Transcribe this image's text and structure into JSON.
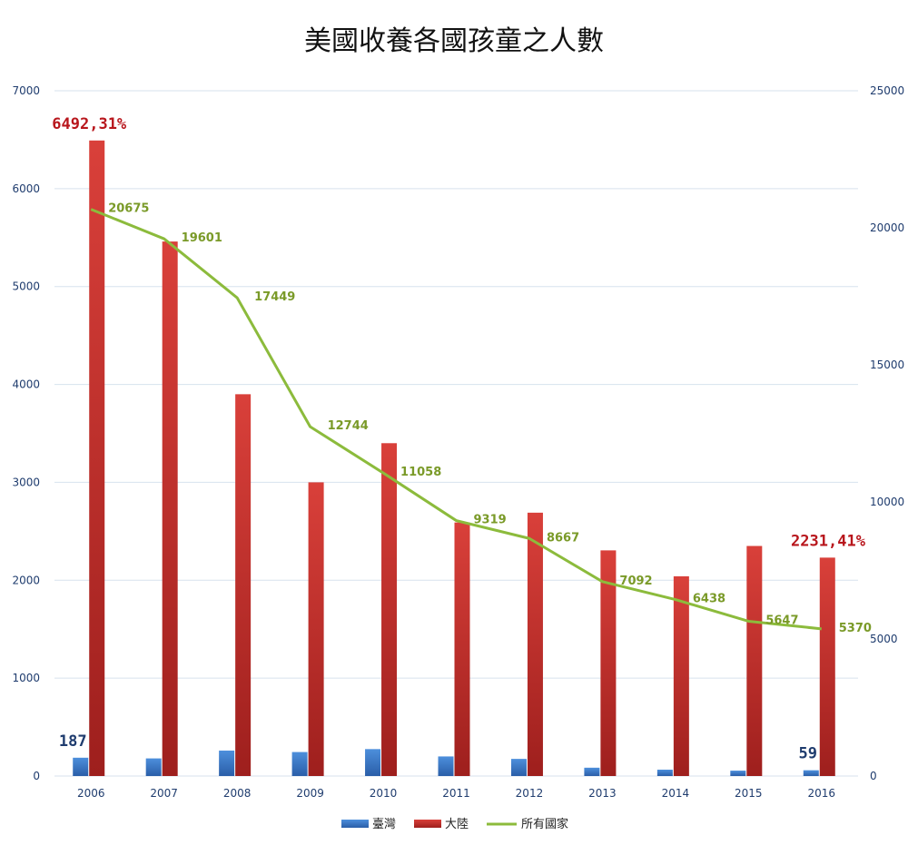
{
  "chart_data": {
    "type": "bar",
    "title": "美國收養各國孩童之人數",
    "categories": [
      "2006",
      "2007",
      "2008",
      "2009",
      "2010",
      "2011",
      "2012",
      "2013",
      "2014",
      "2015",
      "2016"
    ],
    "series": [
      {
        "name": "臺灣",
        "kind": "bar",
        "axis": "left",
        "color": "#3a73c4",
        "values": [
          187,
          180,
          260,
          245,
          275,
          200,
          175,
          85,
          65,
          55,
          59
        ]
      },
      {
        "name": "大陸",
        "kind": "bar",
        "axis": "left",
        "color": "#c9302c",
        "values": [
          6492,
          5460,
          3900,
          3000,
          3400,
          2590,
          2690,
          2305,
          2040,
          2350,
          2231
        ]
      },
      {
        "name": "所有國家",
        "kind": "line",
        "axis": "right",
        "color": "#8cbb3c",
        "values": [
          20675,
          19601,
          17449,
          12744,
          11058,
          9319,
          8667,
          7092,
          6438,
          5647,
          5370
        ]
      }
    ],
    "ylim_left": [
      0,
      7000
    ],
    "ylim_right": [
      0,
      25000
    ],
    "yticks_left": [
      0,
      1000,
      2000,
      3000,
      4000,
      5000,
      6000,
      7000
    ],
    "yticks_right": [
      0,
      5000,
      10000,
      15000,
      20000,
      25000
    ],
    "grid": true,
    "legend_position": "bottom",
    "annotations": [
      {
        "text": "6492,31%",
        "series": "大陸",
        "index": 0,
        "style": "red"
      },
      {
        "text": "2231,41%",
        "series": "大陸",
        "index": 10,
        "style": "red"
      },
      {
        "text": "187",
        "series": "臺灣",
        "index": 0,
        "style": "blue"
      },
      {
        "text": "59",
        "series": "臺灣",
        "index": 10,
        "style": "blue"
      }
    ]
  }
}
